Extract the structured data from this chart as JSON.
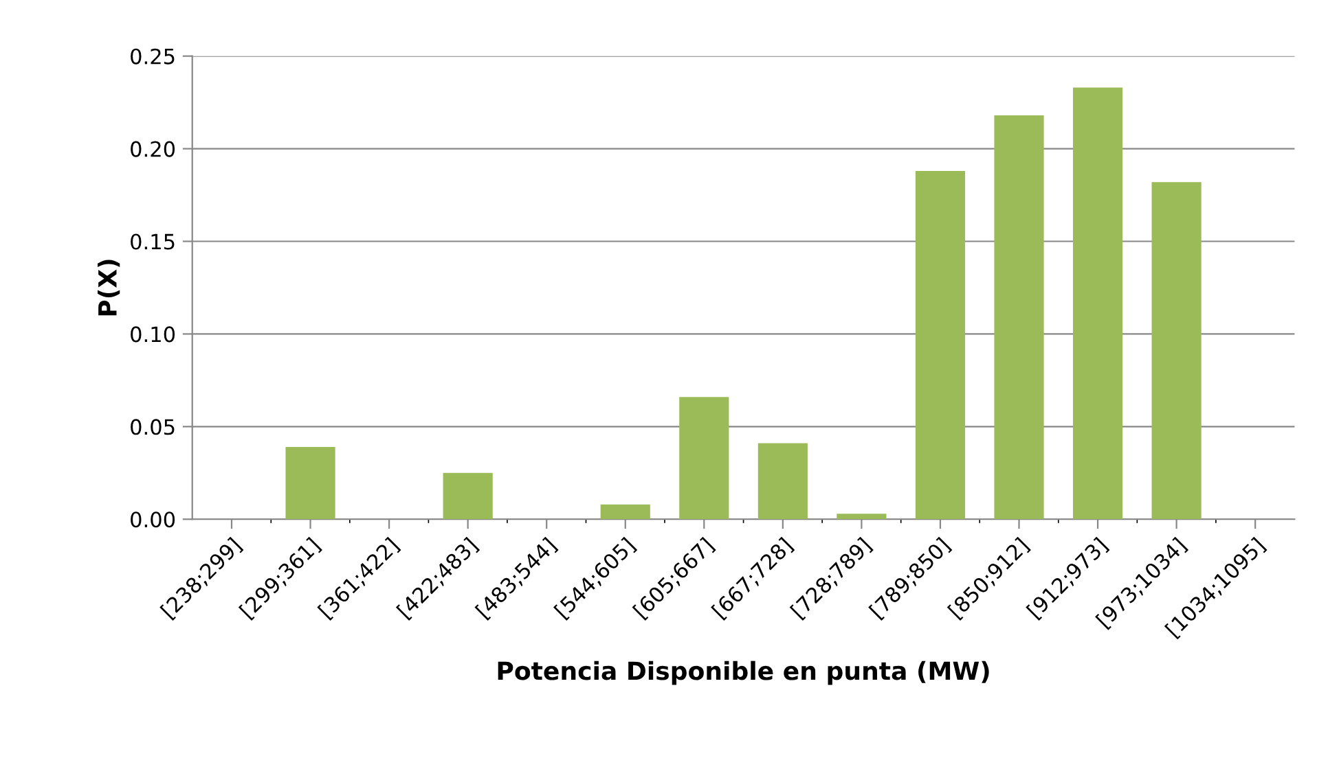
{
  "chart_data": {
    "type": "bar",
    "xlabel": "Potencia Disponible en punta (MW)",
    "ylabel": "P(X)",
    "categories": [
      "[238;299]",
      "[299;361]",
      "[361;422]",
      "[422;483]",
      "[483;544]",
      "[544;605]",
      "[605;667]",
      "[667;728]",
      "[728;789]",
      "[789;850]",
      "[850;912]",
      "[912;973]",
      "[973;1034]",
      "[1034;1095]"
    ],
    "values": [
      0,
      0.039,
      0,
      0.025,
      0,
      0.008,
      0.066,
      0.041,
      0.003,
      0.188,
      0.218,
      0.233,
      0.182,
      0
    ],
    "color": "#9bbb59",
    "ylim": [
      0,
      0.25
    ],
    "yticks": [
      {
        "value": 0,
        "label": "0.00"
      },
      {
        "value": 0.05,
        "label": "0.05"
      },
      {
        "value": 0.1,
        "label": "0.10"
      },
      {
        "value": 0.15,
        "label": "0.15"
      },
      {
        "value": 0.2,
        "label": "0.20"
      },
      {
        "value": 0.25,
        "label": "0.25"
      }
    ],
    "grid": "y",
    "legend": false
  }
}
